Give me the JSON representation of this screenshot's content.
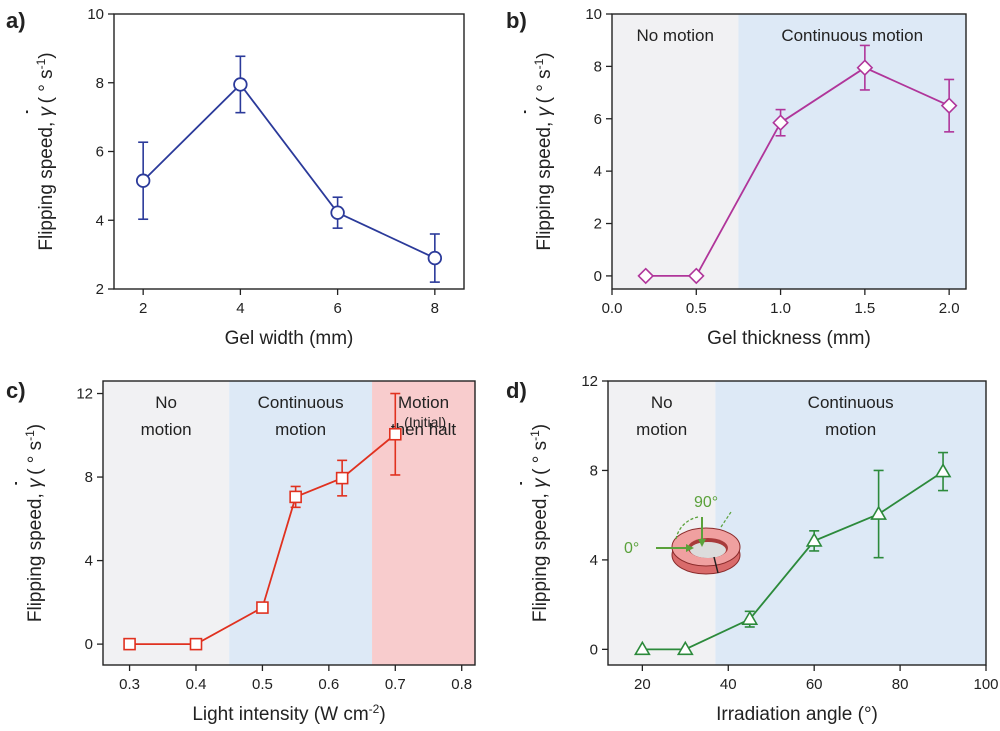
{
  "figure": {
    "panels": [
      {
        "id": "a",
        "panel_label": "a)",
        "chart_data": {
          "type": "line",
          "xlabel": "Gel width (mm)",
          "ylabel": "Flipping speed, γ̇ (° s⁻¹)",
          "ylabel_parts": {
            "prefix": "Flipping speed, ",
            "symbol": "γ",
            "dot": "˙",
            "unit": " ( ° s",
            "unit_sup": "-1",
            "unit_close": ")"
          },
          "xlim": [
            1.4,
            8.6
          ],
          "ylim": [
            2,
            10
          ],
          "xticks": [
            2,
            4,
            6,
            8
          ],
          "yticks": [
            2,
            4,
            6,
            8,
            10
          ],
          "color": "#2b3a9a",
          "marker": "circle",
          "regions": [],
          "series": [
            {
              "x": [
                2,
                4,
                6,
                8
              ],
              "y": [
                5.15,
                7.95,
                4.22,
                2.9
              ],
              "yerr": [
                1.12,
                0.82,
                0.45,
                0.7
              ]
            }
          ]
        }
      },
      {
        "id": "b",
        "panel_label": "b)",
        "chart_data": {
          "type": "line",
          "xlabel": "Gel thickness (mm)",
          "ylabel": "Flipping speed, γ̇ (° s⁻¹)",
          "ylabel_parts": {
            "prefix": "Flipping speed, ",
            "symbol": "γ",
            "dot": "˙",
            "unit": " ( ° s",
            "unit_sup": "-1",
            "unit_close": ")"
          },
          "xlim": [
            0.0,
            2.1
          ],
          "ylim": [
            -0.5,
            10
          ],
          "xticks": [
            0.0,
            0.5,
            1.0,
            1.5,
            2.0
          ],
          "xtick_labels": [
            "0.0",
            "0.5",
            "1.0",
            "1.5",
            "2.0"
          ],
          "yticks": [
            0,
            2,
            4,
            6,
            8,
            10
          ],
          "color": "#b0359a",
          "marker": "diamond",
          "regions": [
            {
              "x0": 0.0,
              "x1": 0.75,
              "color": "#f1f1f3",
              "label_lines": [
                "No motion"
              ]
            },
            {
              "x0": 0.75,
              "x1": 2.1,
              "color": "#dde9f6",
              "label_lines": [
                "Continuous motion"
              ]
            }
          ],
          "series": [
            {
              "x": [
                0.2,
                0.5,
                1.0,
                1.5,
                2.0
              ],
              "y": [
                0,
                0,
                5.85,
                7.95,
                6.5
              ],
              "yerr": [
                0,
                0,
                0.5,
                0.85,
                1.0
              ]
            }
          ]
        }
      },
      {
        "id": "c",
        "panel_label": "c)",
        "chart_data": {
          "type": "line",
          "xlabel": "Light intensity (W cm",
          "xlabel_sup": "-2",
          "xlabel_close": ")",
          "ylabel": "Flipping speed, γ̇ (° s⁻¹)",
          "ylabel_parts": {
            "prefix": "Flipping speed, ",
            "symbol": "γ",
            "dot": "˙",
            "unit": " ( ° s",
            "unit_sup": "-1",
            "unit_close": ")"
          },
          "xlim": [
            0.26,
            0.82
          ],
          "ylim": [
            -1,
            12.6
          ],
          "xticks": [
            0.3,
            0.4,
            0.5,
            0.6,
            0.7,
            0.8
          ],
          "xtick_labels": [
            "0.3",
            "0.4",
            "0.5",
            "0.6",
            "0.7",
            "0.8"
          ],
          "yticks": [
            0,
            4,
            8,
            12
          ],
          "color": "#e0311f",
          "marker": "square",
          "regions": [
            {
              "x0": 0.26,
              "x1": 0.45,
              "color": "#f1f1f3",
              "label_lines": [
                "No",
                "motion"
              ]
            },
            {
              "x0": 0.45,
              "x1": 0.665,
              "color": "#dde9f6",
              "label_lines": [
                "Continuous",
                "motion"
              ]
            },
            {
              "x0": 0.665,
              "x1": 0.82,
              "color": "#f8cccd",
              "label_lines": [
                "Motion",
                "then halt"
              ]
            }
          ],
          "annotations": [
            {
              "text": "(Initial)",
              "x": 0.745,
              "y": 10.4
            }
          ],
          "series": [
            {
              "x": [
                0.3,
                0.4,
                0.5,
                0.55,
                0.62,
                0.7
              ],
              "y": [
                0,
                0,
                1.75,
                7.05,
                7.95,
                10.05
              ],
              "yerr": [
                0,
                0,
                0.2,
                0.5,
                0.85,
                1.95
              ]
            }
          ]
        }
      },
      {
        "id": "d",
        "panel_label": "d)",
        "chart_data": {
          "type": "line",
          "xlabel": "Irradiation angle (°)",
          "ylabel": "Flipping speed, γ̇ (° s⁻¹)",
          "ylabel_parts": {
            "prefix": "Flipping speed, ",
            "symbol": "γ",
            "dot": "˙",
            "unit": " ( ° s",
            "unit_sup": "-1",
            "unit_close": ")"
          },
          "xlim": [
            12,
            100
          ],
          "ylim": [
            -0.7,
            12
          ],
          "xticks": [
            20,
            40,
            60,
            80,
            100
          ],
          "yticks": [
            0,
            4,
            8,
            12
          ],
          "color": "#2c8a3b",
          "marker": "triangle",
          "regions": [
            {
              "x0": 12,
              "x1": 37,
              "color": "#f1f1f3",
              "label_lines": [
                "No",
                "motion"
              ]
            },
            {
              "x0": 37,
              "x1": 100,
              "color": "#dde9f6",
              "label_lines": [
                "Continuous",
                "motion"
              ]
            }
          ],
          "inset": {
            "label_90": "90°",
            "label_0": "0°"
          },
          "series": [
            {
              "x": [
                20,
                30,
                45,
                60,
                75,
                90
              ],
              "y": [
                0,
                0,
                1.35,
                4.85,
                6.05,
                7.95
              ],
              "yerr": [
                0,
                0,
                0.35,
                0.45,
                1.95,
                0.85
              ]
            }
          ]
        }
      }
    ]
  }
}
